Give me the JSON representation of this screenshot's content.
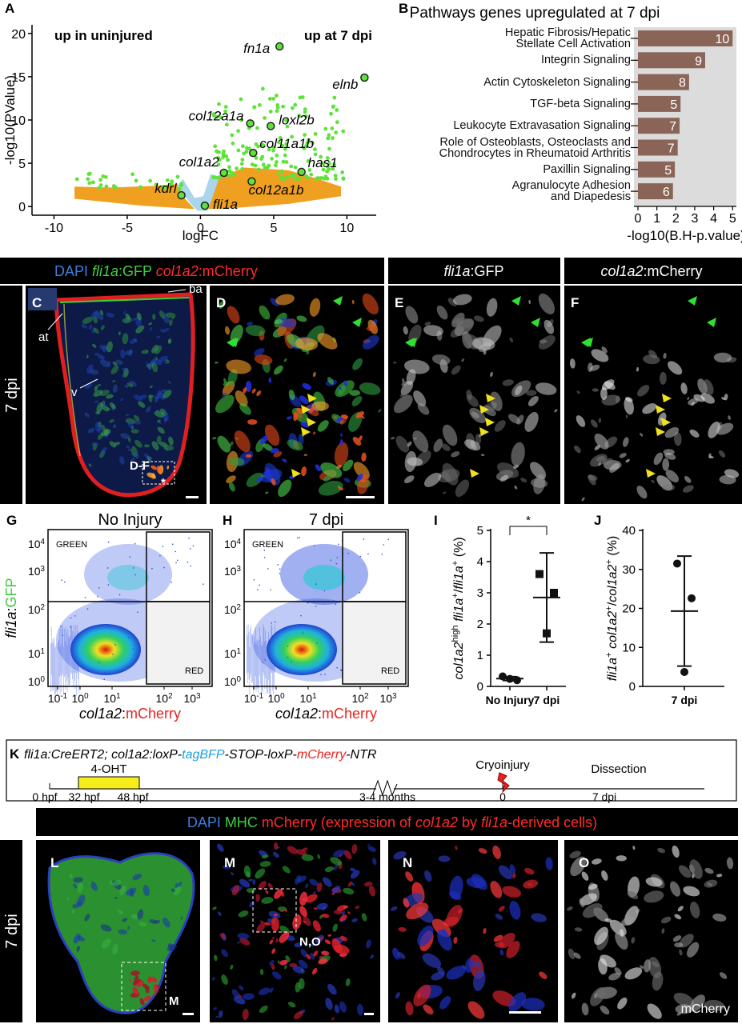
{
  "chart_data": [
    {
      "type": "scatter",
      "panel": "A",
      "xlabel": "logFC",
      "ylabel": "-log10(PValue)",
      "annotations": [
        "up in uninjured",
        "up at 7 dpi"
      ],
      "point_labels": [
        "fn1a",
        "elnb",
        "col12a1a",
        "loxl2b",
        "col11a1b",
        "col1a2",
        "has1",
        "col12a1b",
        "kdrl",
        "fli1a"
      ],
      "x": [
        5.4,
        11.2,
        3.4,
        4.8,
        3.6,
        1.6,
        6.9,
        3.5,
        -1.3,
        0.3
      ],
      "values": [
        18.5,
        14.9,
        9.6,
        9.3,
        6.2,
        3.9,
        4.0,
        2.9,
        1.3,
        0.1
      ],
      "color": "#5fe23a",
      "xlim": [
        -11.5,
        12
      ],
      "ylim": [
        -1,
        21
      ],
      "xticks": [
        -10,
        -5,
        0,
        5,
        10
      ],
      "yticks": [
        0,
        5,
        10,
        15,
        20
      ]
    },
    {
      "type": "barh",
      "panel": "B",
      "title": "Pathways genes upregulated at 7 dpi",
      "categories": [
        "Hepatic Fibrosis/Hepatic\nStellate Cell Activation",
        "Integrin Signaling",
        "Actin Cytoskeleton Signaling",
        "TGF-beta Signaling",
        "Leukocyte Extravasation Signaling",
        "Role of Osteoblasts, Osteoclasts and\nChondrocytes in Rheumatoid Arthritis",
        "Paxillin Signaling",
        "Agranulocyte Adhesion\nand Diapedesis"
      ],
      "values": [
        5.0,
        3.55,
        2.7,
        2.25,
        2.2,
        2.1,
        1.95,
        1.85
      ],
      "gene_counts": [
        10,
        9,
        8,
        5,
        7,
        7,
        5,
        6
      ],
      "color": "#8a6557",
      "background": "#dcdcdc",
      "xlim": [
        0,
        5.2
      ],
      "xticks": [
        0,
        1,
        2,
        3,
        4,
        5
      ],
      "xlabel": "-log10(B.H-p.value)"
    },
    {
      "type": "dot",
      "panel": "I",
      "categories": [
        "No Injury",
        "7 dpi"
      ],
      "values": [
        [
          0.32,
          0.2,
          0.24
        ],
        [
          3.6,
          3.0,
          1.7
        ]
      ],
      "mean": [
        0.25,
        2.85
      ],
      "sd": [
        0.06,
        1.43
      ],
      "markers": [
        "circle",
        "square"
      ],
      "ylim": [
        0,
        5
      ],
      "yticks": [
        0,
        1,
        2,
        3,
        4,
        5
      ],
      "significance": "*",
      "ylabel": [
        {
          "text": "col1a2",
          "italic": true
        },
        {
          "text": "high",
          "sup": true
        },
        {
          "text": " fli1a",
          "italic": true
        },
        {
          "text": "+",
          "sup": true
        },
        {
          "text": "/"
        },
        {
          "text": "fli1a",
          "italic": true
        },
        {
          "text": "+",
          "sup": true
        },
        {
          "text": " (%)"
        }
      ]
    },
    {
      "type": "dot",
      "panel": "J",
      "categories": [
        "7 dpi"
      ],
      "values": [
        [
          31.5,
          22.6,
          3.7
        ]
      ],
      "mean": [
        19.3
      ],
      "sd": [
        14.1
      ],
      "markers": [
        "circle"
      ],
      "ylim": [
        0,
        40
      ],
      "yticks": [
        0,
        10,
        20,
        30,
        40
      ],
      "ylabel": [
        {
          "text": "fli1a",
          "italic": true
        },
        {
          "text": "+",
          "sup": true
        },
        {
          "text": " col1a2",
          "italic": true
        },
        {
          "text": "+",
          "sup": true
        },
        {
          "text": "/"
        },
        {
          "text": "col1a2",
          "italic": true
        },
        {
          "text": "+",
          "sup": true
        },
        {
          "text": " (%)"
        }
      ]
    }
  ],
  "micro_top": {
    "headers": [
      [
        {
          "text": "DAPI ",
          "color": "#3b7fe0"
        },
        {
          "text": "fli1a",
          "color": "#3ed13e",
          "italic": true
        },
        {
          "text": ":GFP ",
          "color": "#3ed13e"
        },
        {
          "text": "col1a2",
          "color": "#ff2a2a",
          "italic": true
        },
        {
          "text": ":mCherry",
          "color": "#ff2a2a"
        }
      ],
      [
        {
          "text": "fli1a",
          "color": "#ffffff",
          "italic": true
        },
        {
          "text": ":GFP",
          "color": "#ffffff"
        }
      ],
      [
        {
          "text": "col1a2",
          "color": "#ffffff",
          "italic": true
        },
        {
          "text": ":mCherry",
          "color": "#ffffff"
        }
      ]
    ],
    "side_label": "7 dpi",
    "letters": [
      "C",
      "D",
      "E",
      "F"
    ],
    "annotations": [
      "at",
      "ba",
      "v",
      "D-F",
      "*"
    ]
  },
  "flow": {
    "panels": [
      {
        "letter": "G",
        "title": "No Injury"
      },
      {
        "letter": "H",
        "title": "7 dpi"
      }
    ],
    "gates": [
      "GREEN",
      "RED"
    ],
    "tick_base": "10",
    "xtick_exponents": [
      "-1",
      "0",
      "1",
      "2",
      "3"
    ],
    "ytick_exponents": [
      "0",
      "1",
      "2",
      "3",
      "4"
    ],
    "ylabel": [
      {
        "text": "fli1a",
        "italic": true
      },
      {
        "text": ":"
      },
      {
        "text": "GFP",
        "color": "#3ec93e"
      }
    ],
    "xlabel": [
      {
        "text": "col1a2",
        "italic": true
      },
      {
        "text": ":"
      },
      {
        "text": "mCherry",
        "color": "#e8231f"
      }
    ]
  },
  "timeline": {
    "panel": "K",
    "title": [
      {
        "text": "fli1a:CreERT2; col1a2:loxP-",
        "italic": true
      },
      {
        "text": "tagBFP",
        "italic": true,
        "color": "#1aa0e0"
      },
      {
        "text": "-STOP-loxP-",
        "italic": true
      },
      {
        "text": "mCherry",
        "italic": true,
        "color": "#e8231f"
      },
      {
        "text": "-NTR",
        "italic": true
      }
    ],
    "treatment": "4-OHT",
    "labels": [
      "0 hpf",
      "32 hpf",
      "48 hpf",
      "3-4 months",
      "0",
      "7 dpi"
    ],
    "events": [
      "Cryoinjury",
      "Dissection"
    ]
  },
  "micro_bottom": {
    "header": [
      {
        "text": "DAPI ",
        "color": "#3b7fe0"
      },
      {
        "text": "MHC ",
        "color": "#3ed13e"
      },
      {
        "text": "mCherry (expression of ",
        "color": "#ff2a2a"
      },
      {
        "text": "col1a2",
        "color": "#ff2a2a",
        "italic": true
      },
      {
        "text": " by ",
        "color": "#ff2a2a"
      },
      {
        "text": "fli1a",
        "color": "#ff2a2a",
        "italic": true
      },
      {
        "text": "-derived cells)",
        "color": "#ff2a2a"
      }
    ],
    "side_label": "7 dpi",
    "letters": [
      "L",
      "M",
      "N",
      "O"
    ],
    "annotations": [
      "M",
      "N,O",
      "mCherry"
    ]
  }
}
